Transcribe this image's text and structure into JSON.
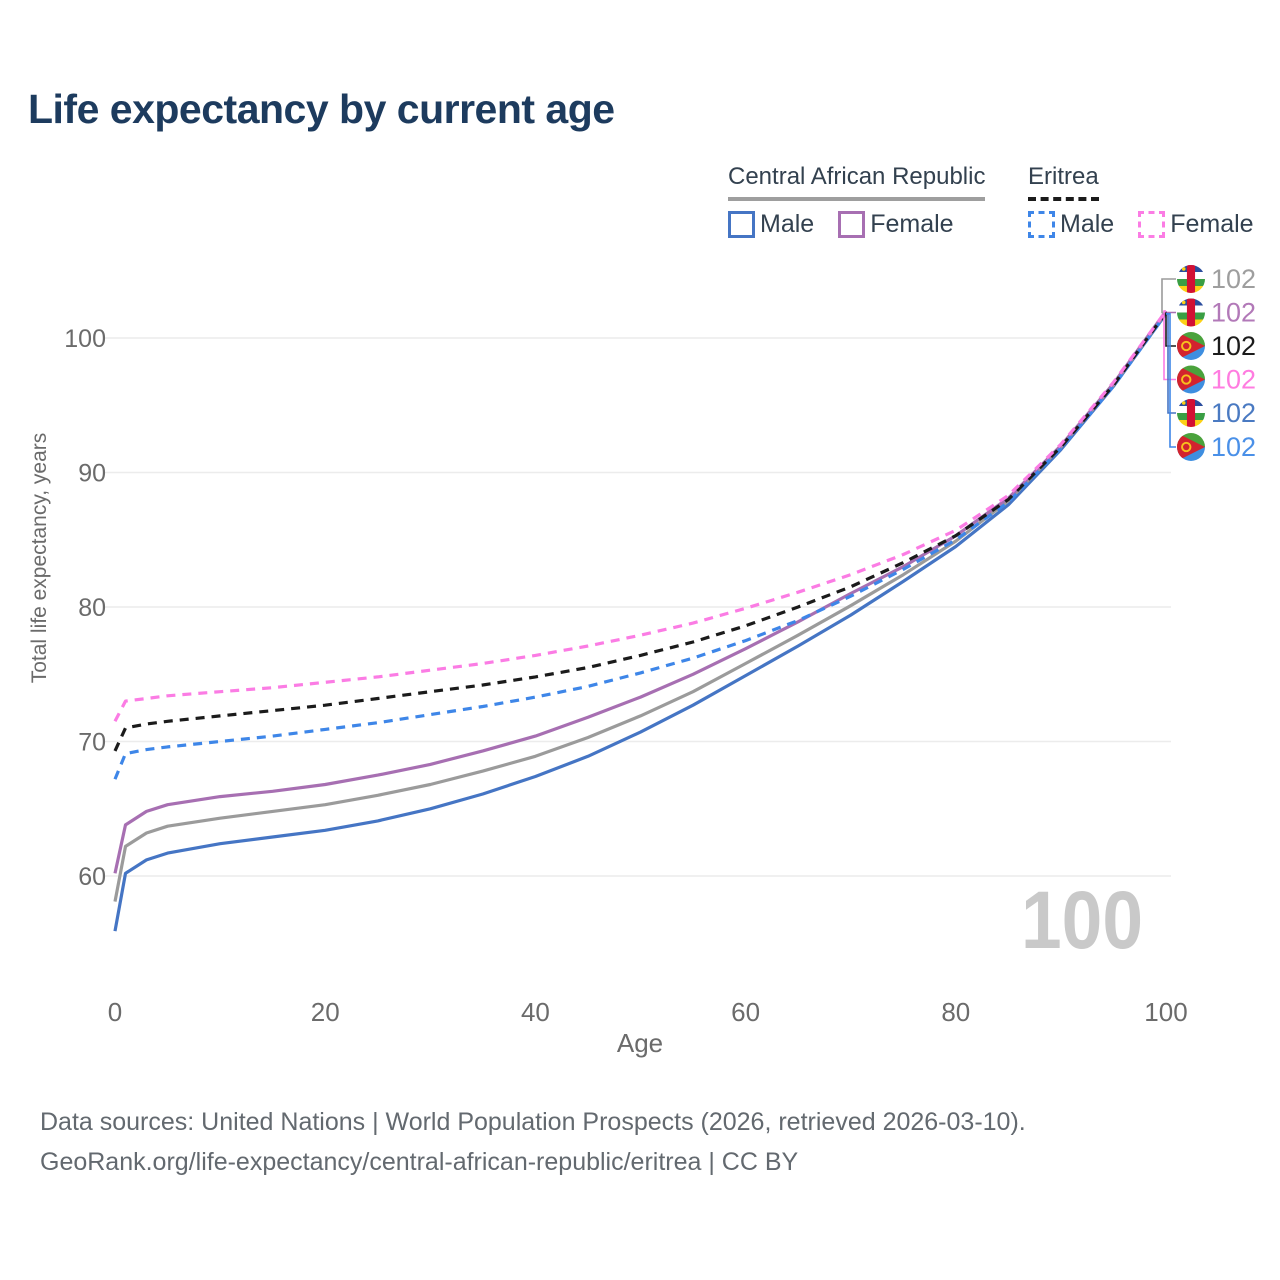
{
  "title": "Life expectancy by current age",
  "legend": {
    "groups": [
      {
        "label": "Central African Republic",
        "line_style": "solid",
        "underline_color": "#9e9e9e",
        "items": [
          {
            "label": "Male",
            "color": "#4575c4",
            "style": "solid"
          },
          {
            "label": "Female",
            "color": "#a76fb2",
            "style": "solid"
          }
        ]
      },
      {
        "label": "Eritrea",
        "line_style": "dashed",
        "underline_color": "#1b1b1b",
        "items": [
          {
            "label": "Male",
            "color": "#3e86e8",
            "style": "dashed"
          },
          {
            "label": "Female",
            "color": "#fb7ce4",
            "style": "dashed"
          }
        ]
      }
    ]
  },
  "chart_data": {
    "type": "line",
    "title": "Life expectancy by current age",
    "xlabel": "Age",
    "ylabel": "Total life expectancy, years",
    "xlim": [
      0,
      100
    ],
    "ylim": [
      55,
      104
    ],
    "x_ticks": [
      0,
      20,
      40,
      60,
      80,
      100
    ],
    "y_ticks": [
      60,
      70,
      80,
      90,
      100
    ],
    "grid": "horizontal",
    "gridline_color": "#ececec",
    "axis_text_color": "#6b6b6b",
    "watermark": "100",
    "watermark_color": "#c9c9c9",
    "x": [
      0,
      1,
      3,
      5,
      10,
      15,
      20,
      25,
      30,
      35,
      40,
      45,
      50,
      55,
      60,
      65,
      70,
      75,
      80,
      85,
      90,
      95,
      100
    ],
    "series": [
      {
        "key": "car_male",
        "name": "Central African Republic Male",
        "country": "Central African Republic",
        "sex": "Male",
        "flag": "car",
        "color": "#4575c4",
        "dashed": false,
        "values": [
          55.9,
          60.2,
          61.2,
          61.7,
          62.4,
          62.9,
          63.4,
          64.1,
          65.0,
          66.1,
          67.4,
          68.9,
          70.7,
          72.7,
          74.9,
          77.1,
          79.4,
          81.9,
          84.5,
          87.6,
          91.7,
          96.4,
          101.8
        ]
      },
      {
        "key": "car_both",
        "name": "Central African Republic Both sexes",
        "country": "Central African Republic",
        "sex": "Both",
        "flag": "car",
        "color": "#9b9b9b",
        "dashed": false,
        "values": [
          58.1,
          62.2,
          63.2,
          63.7,
          64.3,
          64.8,
          65.3,
          66.0,
          66.8,
          67.8,
          68.9,
          70.3,
          71.9,
          73.7,
          75.8,
          77.9,
          80.1,
          82.4,
          84.9,
          87.9,
          91.9,
          96.5,
          101.9
        ]
      },
      {
        "key": "car_female",
        "name": "Central African Republic Female",
        "country": "Central African Republic",
        "sex": "Female",
        "flag": "car",
        "color": "#a76fb2",
        "dashed": false,
        "values": [
          60.2,
          63.8,
          64.8,
          65.3,
          65.9,
          66.3,
          66.8,
          67.5,
          68.3,
          69.3,
          70.4,
          71.8,
          73.3,
          75.0,
          76.9,
          78.9,
          81.0,
          83.0,
          85.3,
          88.1,
          92.0,
          96.6,
          102.0
        ]
      },
      {
        "key": "eri_male",
        "name": "Eritrea Male",
        "country": "Eritrea",
        "sex": "Male",
        "flag": "eri",
        "color": "#3e86e8",
        "dashed": true,
        "values": [
          67.2,
          69.1,
          69.4,
          69.6,
          70.0,
          70.4,
          70.9,
          71.4,
          72.0,
          72.6,
          73.3,
          74.1,
          75.1,
          76.2,
          77.5,
          79.0,
          80.8,
          82.8,
          85.0,
          87.8,
          91.8,
          96.4,
          101.8
        ]
      },
      {
        "key": "eri_both",
        "name": "Eritrea Both sexes",
        "country": "Eritrea",
        "sex": "Both",
        "flag": "eri",
        "color": "#1b1b1b",
        "dashed": true,
        "values": [
          69.3,
          71.0,
          71.3,
          71.5,
          71.9,
          72.3,
          72.7,
          73.2,
          73.7,
          74.2,
          74.8,
          75.5,
          76.4,
          77.4,
          78.6,
          80.0,
          81.5,
          83.3,
          85.3,
          88.0,
          91.9,
          96.5,
          101.9
        ]
      },
      {
        "key": "eri_female",
        "name": "Eritrea Female",
        "country": "Eritrea",
        "sex": "Female",
        "flag": "eri",
        "color": "#fb7ce4",
        "dashed": true,
        "values": [
          71.5,
          73.0,
          73.2,
          73.4,
          73.7,
          74.0,
          74.4,
          74.8,
          75.3,
          75.8,
          76.4,
          77.1,
          77.9,
          78.8,
          79.9,
          81.1,
          82.4,
          83.9,
          85.7,
          88.3,
          92.1,
          96.7,
          102.0
        ]
      }
    ],
    "end_labels": [
      {
        "series": "car_both",
        "value": "102",
        "label_color": "#9e9e9e",
        "flag": "car"
      },
      {
        "series": "car_female",
        "value": "102",
        "label_color": "#b279b8",
        "flag": "car"
      },
      {
        "series": "eri_both",
        "value": "102",
        "label_color": "#1b1b1b",
        "flag": "eri"
      },
      {
        "series": "eri_female",
        "value": "102",
        "label_color": "#ff7ce0",
        "flag": "eri"
      },
      {
        "series": "car_male",
        "value": "102",
        "label_color": "#4a7ac2",
        "flag": "car"
      },
      {
        "series": "eri_male",
        "value": "102",
        "label_color": "#4a90e8",
        "flag": "eri"
      }
    ],
    "flag_colors": {
      "car": {
        "blue": "#2b4d9d",
        "white": "#ffffff",
        "green": "#3a9e44",
        "yellow": "#fcd116",
        "red": "#d21034",
        "star": "#fcd116"
      },
      "eri": {
        "green": "#4aa23c",
        "blue": "#3e8ee0",
        "red": "#d2232e",
        "emblem": "#f7c01e"
      }
    }
  },
  "footer": {
    "line1": "Data sources: United Nations | World Population Prospects (2026, retrieved 2026-03-10).",
    "line2": "GeoRank.org/life-expectancy/central-african-republic/eritrea | CC BY"
  }
}
